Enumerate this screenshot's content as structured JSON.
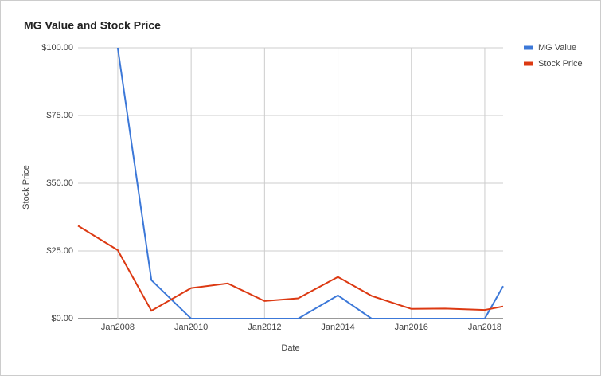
{
  "chart_data": {
    "type": "line",
    "title": "MG Value and Stock Price",
    "x_label": "Date",
    "y_label": "Stock Price",
    "x": [
      "2006-12",
      "2008-01",
      "2008-12",
      "2010-01",
      "2011-01",
      "2012-01",
      "2012-12",
      "2014-01",
      "2014-12",
      "2016-01",
      "2016-12",
      "2018-01",
      "2018-07"
    ],
    "series": [
      {
        "name": "MG Value",
        "color": "#3c78d8",
        "values": [
          null,
          100,
          14.2,
          0,
          0,
          0,
          0,
          8.6,
          0,
          0,
          0,
          0,
          12
        ]
      },
      {
        "name": "Stock Price",
        "color": "#dc3912",
        "values": [
          34.3,
          25.3,
          2.9,
          11.3,
          13.0,
          6.5,
          7.5,
          15.4,
          8.4,
          3.6,
          3.7,
          3.2,
          4.5
        ]
      }
    ],
    "xlim": [
      "2006-12",
      "2018-07"
    ],
    "xticks": [
      {
        "value": "2008-01",
        "label": "Jan2008"
      },
      {
        "value": "2010-01",
        "label": "Jan2010"
      },
      {
        "value": "2012-01",
        "label": "Jan2012"
      },
      {
        "value": "2014-01",
        "label": "Jan2014"
      },
      {
        "value": "2016-01",
        "label": "Jan2016"
      },
      {
        "value": "2018-01",
        "label": "Jan2018"
      }
    ],
    "ylim": [
      0,
      100
    ],
    "yticks": [
      {
        "value": 0,
        "label": "$0.00"
      },
      {
        "value": 25,
        "label": "$25.00"
      },
      {
        "value": 50,
        "label": "$50.00"
      },
      {
        "value": 75,
        "label": "$75.00"
      },
      {
        "value": 100,
        "label": "$100.00"
      }
    ],
    "grid": true,
    "legend": "right"
  }
}
